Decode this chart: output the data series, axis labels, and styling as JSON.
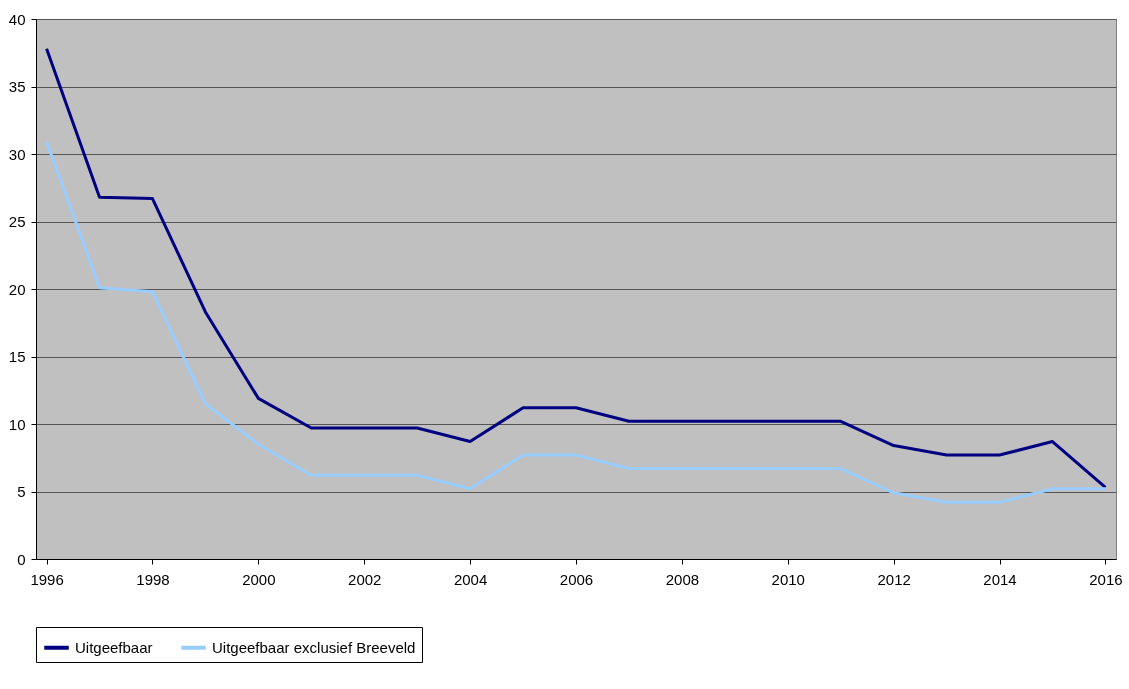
{
  "chart_data": {
    "type": "line",
    "x": [
      1996,
      1997,
      1998,
      1999,
      2000,
      2001,
      2002,
      2003,
      2004,
      2005,
      2006,
      2007,
      2008,
      2009,
      2010,
      2011,
      2012,
      2013,
      2014,
      2015,
      2016
    ],
    "series": [
      {
        "name": "Uitgeefbaar",
        "color": "#000080",
        "values": [
          37.8,
          26.8,
          26.7,
          18.3,
          11.9,
          9.7,
          9.7,
          9.7,
          8.7,
          11.2,
          11.2,
          10.2,
          10.2,
          10.2,
          10.2,
          10.2,
          8.4,
          7.7,
          7.7,
          8.7,
          5.3
        ]
      },
      {
        "name": "Uitgeefbaar exclusief Breeveld",
        "color": "#99ccff",
        "values": [
          30.9,
          20.1,
          19.8,
          11.5,
          8.5,
          6.2,
          6.2,
          6.2,
          5.2,
          7.7,
          7.7,
          6.7,
          6.7,
          6.7,
          6.7,
          6.7,
          4.9,
          4.2,
          4.2,
          5.2,
          5.2
        ]
      }
    ],
    "xlim": [
      1995.8,
      2016.2
    ],
    "xticks": [
      1996,
      1998,
      2000,
      2002,
      2004,
      2006,
      2008,
      2010,
      2012,
      2014,
      2016
    ],
    "ylim": [
      0,
      40
    ],
    "yticks": [
      0,
      5,
      10,
      15,
      20,
      25,
      30,
      35,
      40
    ],
    "grid": "y",
    "legend": "bottom",
    "marker": "none",
    "line_style": "solid"
  }
}
